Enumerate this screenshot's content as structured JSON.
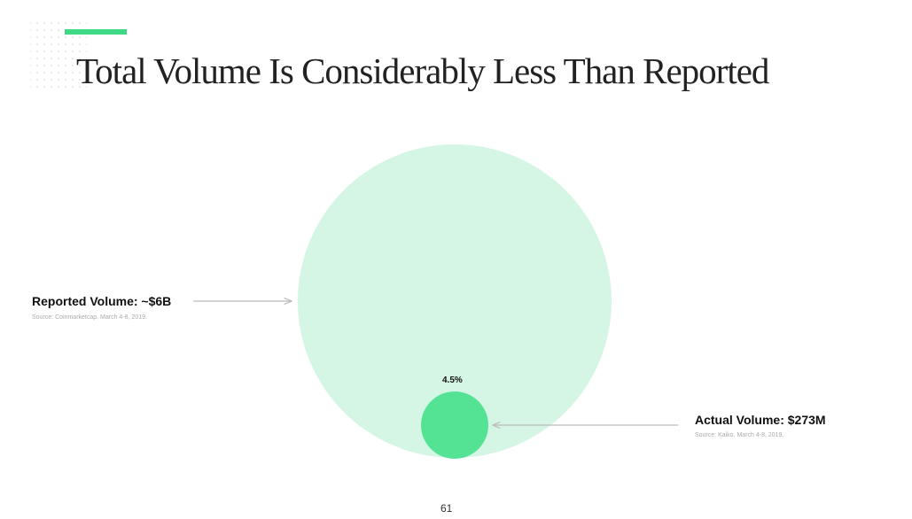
{
  "header": {
    "title": "Total Volume Is Considerably Less Than Reported"
  },
  "callouts": [
    {
      "label": "Reported Volume: ~$6B",
      "source": "Source: Coinmarketcap. March 4-8, 2019."
    },
    {
      "label": "Actual Volume: $273M",
      "source": "Source: Kaiko. March 4-8, 2019."
    }
  ],
  "share_label": "4.5%",
  "page_number": "61"
}
